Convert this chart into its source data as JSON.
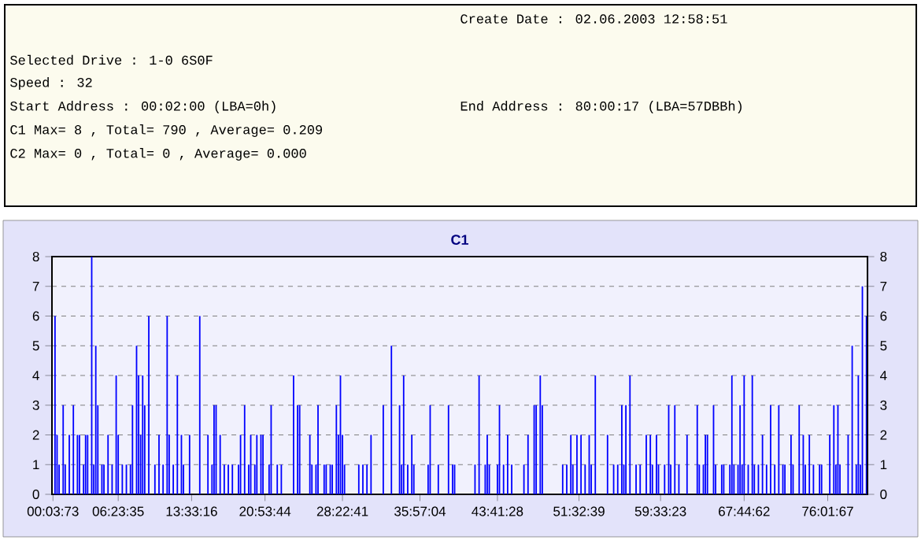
{
  "chart_data": {
    "type": "bar",
    "title": "C1",
    "annotations": [
      "Create Date : 02.06.2003 12:58:51",
      "Selected Drive : 1-0 6S0F",
      "Speed : 32",
      "Start Address : 00:02:00 (LBA=0h)",
      "End Address : 80:00:17 (LBA=57DBBh)",
      "C1 Max= 8 , Total= 790 , Average= 0.209",
      "C2 Max= 0 , Total= 0 , Average= 0.000"
    ],
    "categories": [
      "00:03:73",
      null,
      null,
      null,
      null,
      null,
      null,
      null,
      null,
      null,
      null,
      null,
      null,
      null,
      null,
      null,
      null,
      null,
      null,
      null,
      null,
      null,
      null,
      null,
      null,
      null,
      null,
      null,
      null,
      null,
      null,
      null,
      "06:23:35",
      null,
      null,
      null,
      null,
      null,
      null,
      null,
      null,
      null,
      null,
      null,
      null,
      null,
      null,
      null,
      null,
      null,
      null,
      null,
      null,
      null,
      null,
      null,
      null,
      null,
      null,
      null,
      null,
      null,
      null,
      null,
      null,
      null,
      null,
      null,
      "13:33:16",
      null,
      null,
      null,
      null,
      null,
      null,
      null,
      null,
      null,
      null,
      null,
      null,
      null,
      null,
      null,
      null,
      null,
      null,
      null,
      null,
      null,
      null,
      null,
      null,
      null,
      null,
      null,
      null,
      null,
      null,
      null,
      null,
      null,
      null,
      null,
      "20:53:44",
      null,
      null,
      null,
      null,
      null,
      null,
      null,
      null,
      null,
      null,
      null,
      null,
      null,
      null,
      null,
      null,
      null,
      null,
      null,
      null,
      null,
      null,
      null,
      null,
      null,
      null,
      null,
      null,
      null,
      null,
      null,
      null,
      null,
      null,
      null,
      null,
      null,
      "28:22:41",
      null,
      null,
      null,
      null,
      null,
      null,
      null,
      null,
      null,
      null,
      null,
      null,
      null,
      null,
      null,
      null,
      null,
      null,
      null,
      null,
      null,
      null,
      null,
      null,
      null,
      null,
      null,
      null,
      null,
      null,
      null,
      null,
      null,
      null,
      null,
      null,
      null,
      "35:57:04",
      null,
      null,
      null,
      null,
      null,
      null,
      null,
      null,
      null,
      null,
      null,
      null,
      null,
      null,
      null,
      null,
      null,
      null,
      null,
      null,
      null,
      null,
      null,
      null,
      null,
      null,
      null,
      null,
      null,
      null,
      null,
      null,
      null,
      null,
      null,
      null,
      null,
      "43:41:28",
      null,
      null,
      null,
      null,
      null,
      null,
      null,
      null,
      null,
      null,
      null,
      null,
      null,
      null,
      null,
      null,
      null,
      null,
      null,
      null,
      null,
      null,
      null,
      null,
      null,
      null,
      null,
      null,
      null,
      null,
      null,
      null,
      null,
      null,
      null,
      null,
      null,
      null,
      null,
      "51:32:39",
      null,
      null,
      null,
      null,
      null,
      null,
      null,
      null,
      null,
      null,
      null,
      null,
      null,
      null,
      null,
      null,
      null,
      null,
      null,
      null,
      null,
      null,
      null,
      null,
      null,
      null,
      null,
      null,
      null,
      null,
      null,
      null,
      null,
      null,
      null,
      null,
      null,
      null,
      null,
      "59:33:23",
      null,
      null,
      null,
      null,
      null,
      null,
      null,
      null,
      null,
      null,
      null,
      null,
      null,
      null,
      null,
      null,
      null,
      null,
      null,
      null,
      null,
      null,
      null,
      null,
      null,
      null,
      null,
      null,
      null,
      null,
      null,
      null,
      null,
      null,
      null,
      null,
      null,
      null,
      null,
      null,
      "67:44:62",
      null,
      null,
      null,
      null,
      null,
      null,
      null,
      null,
      null,
      null,
      null,
      null,
      null,
      null,
      null,
      null,
      null,
      null,
      null,
      null,
      null,
      null,
      null,
      null,
      null,
      null,
      null,
      null,
      null,
      null,
      null,
      null,
      null,
      null,
      null,
      null,
      null,
      null,
      null,
      null,
      "76:01:67",
      null,
      null,
      null,
      null,
      null,
      null,
      null,
      null,
      null,
      null,
      null,
      null,
      null,
      null,
      null,
      null,
      null,
      null,
      null
    ],
    "values": [
      0,
      6,
      2,
      1,
      0,
      3,
      1,
      0,
      2,
      0,
      3,
      0,
      2,
      2,
      0,
      1,
      2,
      2,
      0,
      8,
      1,
      5,
      3,
      0,
      1,
      1,
      0,
      2,
      0,
      1,
      0,
      4,
      2,
      0,
      1,
      0,
      1,
      0,
      1,
      3,
      0,
      5,
      4,
      2,
      4,
      3,
      0,
      6,
      0,
      0,
      1,
      0,
      2,
      0,
      1,
      0,
      6,
      2,
      0,
      1,
      0,
      4,
      0,
      2,
      1,
      0,
      0,
      2,
      0,
      0,
      0,
      0,
      6,
      0,
      0,
      0,
      2,
      0,
      1,
      3,
      3,
      0,
      2,
      0,
      1,
      0,
      1,
      0,
      1,
      0,
      0,
      1,
      2,
      0,
      3,
      0,
      1,
      2,
      0,
      1,
      2,
      0,
      2,
      2,
      0,
      0,
      1,
      3,
      0,
      0,
      1,
      0,
      1,
      0,
      0,
      0,
      0,
      0,
      4,
      0,
      3,
      3,
      0,
      0,
      0,
      0,
      2,
      1,
      0,
      1,
      3,
      0,
      0,
      1,
      1,
      0,
      1,
      1,
      0,
      3,
      2,
      4,
      2,
      1,
      0,
      0,
      0,
      0,
      0,
      0,
      1,
      0,
      1,
      0,
      1,
      0,
      2,
      0,
      0,
      0,
      0,
      0,
      3,
      0,
      0,
      0,
      5,
      0,
      0,
      0,
      3,
      1,
      4,
      0,
      1,
      0,
      2,
      1,
      0,
      0,
      0,
      0,
      0,
      0,
      1,
      3,
      0,
      0,
      0,
      1,
      0,
      0,
      0,
      0,
      3,
      0,
      1,
      1,
      0,
      0,
      0,
      0,
      0,
      0,
      0,
      0,
      0,
      1,
      0,
      4,
      0,
      0,
      1,
      2,
      1,
      0,
      0,
      0,
      1,
      3,
      0,
      1,
      0,
      2,
      0,
      1,
      0,
      0,
      0,
      0,
      0,
      1,
      0,
      2,
      0,
      0,
      3,
      3,
      0,
      4,
      3,
      0,
      0,
      0,
      0,
      0,
      0,
      0,
      0,
      0,
      1,
      0,
      1,
      0,
      2,
      1,
      0,
      2,
      0,
      2,
      0,
      1,
      0,
      2,
      1,
      0,
      4,
      0,
      0,
      0,
      0,
      0,
      2,
      0,
      0,
      1,
      0,
      1,
      0,
      3,
      1,
      3,
      0,
      4,
      0,
      0,
      1,
      0,
      1,
      0,
      0,
      2,
      0,
      2,
      1,
      0,
      2,
      1,
      0,
      0,
      1,
      0,
      3,
      1,
      0,
      3,
      0,
      1,
      0,
      0,
      0,
      2,
      0,
      0,
      0,
      0,
      3,
      1,
      0,
      1,
      2,
      2,
      0,
      0,
      3,
      1,
      0,
      0,
      1,
      1,
      0,
      0,
      1,
      4,
      1,
      0,
      1,
      3,
      1,
      4,
      0,
      1,
      0,
      4,
      1,
      0,
      1,
      0,
      2,
      0,
      1,
      0,
      3,
      0,
      1,
      0,
      3,
      0,
      1,
      1,
      0,
      0,
      2,
      1,
      0,
      0,
      3,
      0,
      2,
      1,
      0,
      2,
      0,
      1,
      0,
      0,
      1,
      1,
      0,
      0,
      0,
      2,
      0,
      3,
      1,
      3,
      1,
      0,
      0,
      0,
      2,
      0,
      5,
      0,
      1,
      4,
      1,
      7,
      0,
      6
    ],
    "color": "#0000ff",
    "ylim": [
      0,
      8
    ],
    "yticks": [
      0,
      1,
      2,
      3,
      4,
      5,
      6,
      7,
      8
    ],
    "y2lim": [
      0,
      8
    ],
    "y2ticks": [
      0,
      1,
      2,
      3,
      4,
      5,
      6,
      7,
      8
    ],
    "grid": "y"
  }
}
